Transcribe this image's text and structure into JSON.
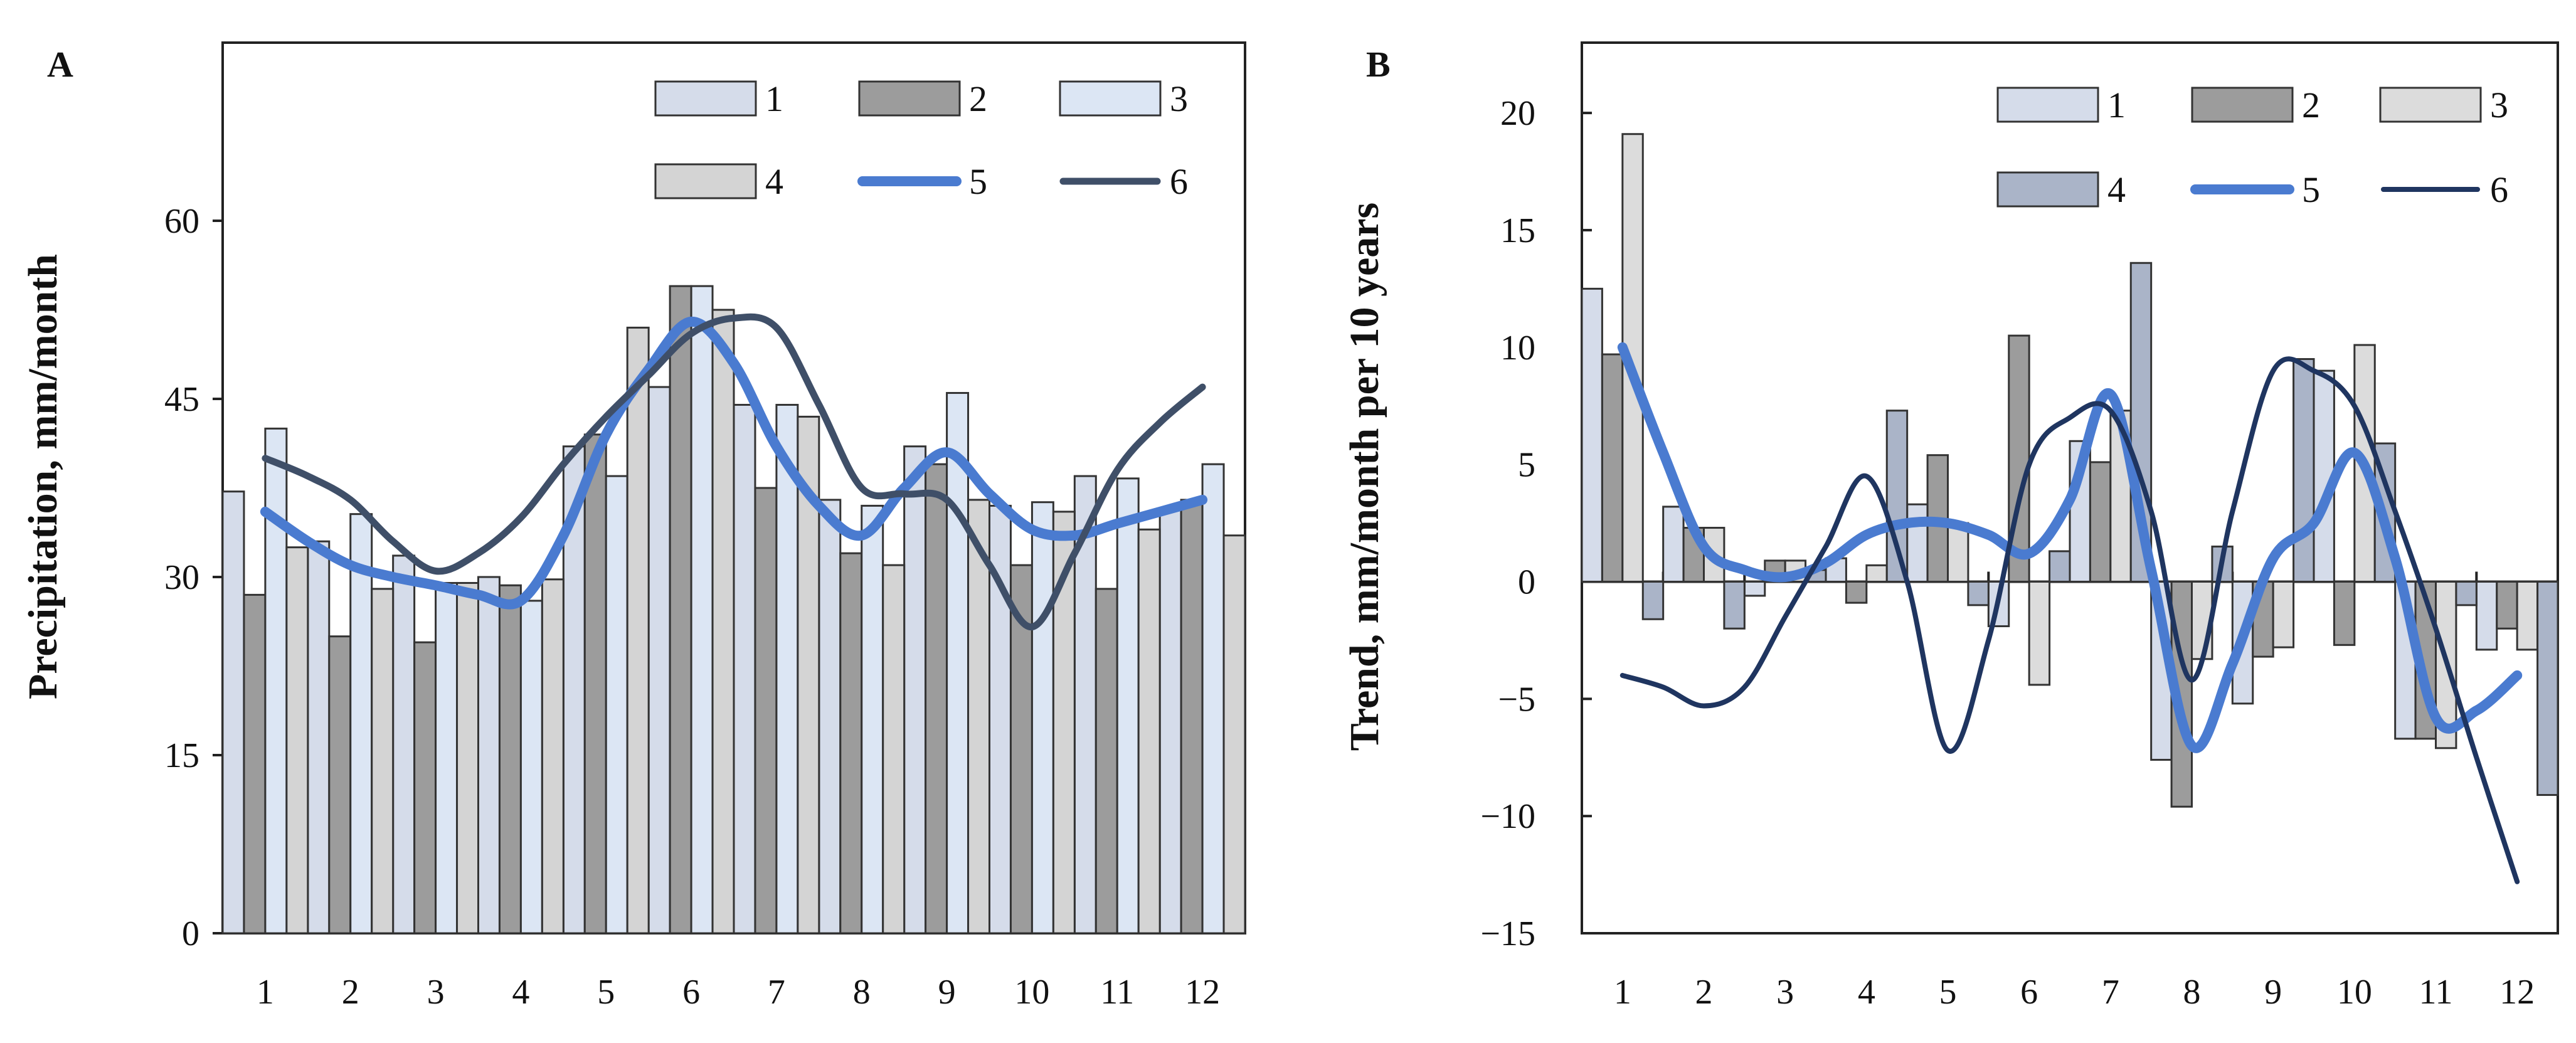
{
  "chart_data": [
    {
      "type": "bar",
      "panel_label": "A",
      "ylabel": "Precipitation, mm/month",
      "xlabel": "",
      "ylim": [
        0,
        75
      ],
      "yticks": [
        0,
        15,
        30,
        45,
        60
      ],
      "categories": [
        "1",
        "2",
        "3",
        "4",
        "5",
        "6",
        "7",
        "8",
        "9",
        "10",
        "11",
        "12"
      ],
      "legend_position": "top-right",
      "series": [
        {
          "name": "1",
          "kind": "bar",
          "color": "#d5dcea",
          "values": [
            37.2,
            33.0,
            31.8,
            30.0,
            41.0,
            46.0,
            44.5,
            36.5,
            41.0,
            36.0,
            38.5,
            35.8
          ]
        },
        {
          "name": "2",
          "kind": "bar",
          "color": "#9c9c9c",
          "values": [
            28.5,
            25.0,
            24.5,
            29.3,
            42.0,
            54.5,
            37.5,
            32.0,
            39.5,
            31.0,
            29.0,
            36.5
          ]
        },
        {
          "name": "3",
          "kind": "bar",
          "color": "#dce6f4",
          "values": [
            42.5,
            35.3,
            29.5,
            28.0,
            38.5,
            54.5,
            44.5,
            36.0,
            45.5,
            36.3,
            38.3,
            39.5
          ]
        },
        {
          "name": "4",
          "kind": "bar",
          "color": "#d4d4d4",
          "values": [
            32.5,
            29.0,
            29.5,
            29.8,
            51.0,
            52.5,
            43.5,
            31.0,
            36.5,
            35.5,
            34.0,
            33.5
          ]
        },
        {
          "name": "5",
          "kind": "line",
          "color": "#4a7bd0",
          "x": [
            1,
            1.5,
            2,
            2.5,
            3,
            3.5,
            4,
            4.5,
            5,
            5.5,
            6,
            6.5,
            7,
            7.5,
            8,
            8.5,
            9,
            9.5,
            10,
            10.5,
            11,
            11.5,
            12
          ],
          "values": [
            35.5,
            33.0,
            31.0,
            30.0,
            29.3,
            28.5,
            28.0,
            33.5,
            42.0,
            47.5,
            51.5,
            48.0,
            41.0,
            36.0,
            33.5,
            37.5,
            40.5,
            37.0,
            34.0,
            33.5,
            34.5,
            35.5,
            36.5
          ]
        },
        {
          "name": "6",
          "kind": "line",
          "color": "#3f4f68",
          "x": [
            1,
            1.5,
            2,
            2.5,
            3,
            3.5,
            4,
            4.5,
            5,
            5.5,
            6,
            6.5,
            7,
            7.5,
            8,
            8.5,
            9,
            9.5,
            10,
            10.5,
            11,
            11.5,
            12
          ],
          "values": [
            40.0,
            38.5,
            36.5,
            33.0,
            30.5,
            32.0,
            35.0,
            39.5,
            43.5,
            47.0,
            50.5,
            51.8,
            51.0,
            44.5,
            37.5,
            37.0,
            36.5,
            31.0,
            25.8,
            32.0,
            39.0,
            43.0,
            46.0
          ]
        }
      ]
    },
    {
      "type": "bar",
      "panel_label": "B",
      "ylabel": "Trend, mm/month per  10 years",
      "xlabel": "",
      "ylim": [
        -15,
        23
      ],
      "yticks": [
        -15,
        -10,
        -5,
        0,
        5,
        10,
        15,
        20
      ],
      "categories": [
        "1",
        "2",
        "3",
        "4",
        "5",
        "6",
        "7",
        "8",
        "9",
        "10",
        "11",
        "12"
      ],
      "legend_position": "top-right",
      "series": [
        {
          "name": "1",
          "kind": "bar",
          "color": "#d5dcea",
          "values": [
            12.5,
            3.2,
            -0.6,
            1.0,
            3.3,
            -1.9,
            6.0,
            -7.6,
            -5.2,
            9.0,
            -6.7,
            -2.9
          ]
        },
        {
          "name": "2",
          "kind": "bar",
          "color": "#9c9c9c",
          "values": [
            9.7,
            2.3,
            0.9,
            -0.9,
            5.4,
            10.5,
            5.1,
            -9.6,
            -3.2,
            -2.7,
            -6.7,
            -2.0
          ]
        },
        {
          "name": "3",
          "kind": "bar",
          "color": "#dcdcdc",
          "values": [
            19.1,
            2.3,
            0.9,
            0.7,
            2.5,
            -4.4,
            7.3,
            -3.3,
            -2.8,
            10.1,
            -7.1,
            -2.9
          ]
        },
        {
          "name": "4",
          "kind": "bar",
          "color": "#aab4c8",
          "values": [
            -1.6,
            -2.0,
            0.5,
            7.3,
            -1.0,
            1.3,
            13.6,
            1.5,
            9.5,
            5.9,
            -1.0,
            -9.1
          ]
        },
        {
          "name": "5",
          "kind": "line",
          "color": "#4a7bd0",
          "x": [
            1,
            1.5,
            2,
            2.5,
            3,
            3.5,
            4,
            4.5,
            5,
            5.5,
            6,
            6.5,
            7,
            7.5,
            8,
            8.5,
            9,
            9.5,
            10,
            10.5,
            11,
            11.5,
            12
          ],
          "values": [
            10.0,
            5.5,
            1.5,
            0.5,
            0.2,
            0.8,
            2.0,
            2.5,
            2.5,
            2.0,
            1.2,
            3.5,
            8.0,
            0.5,
            -7.0,
            -3.5,
            1.0,
            2.5,
            5.5,
            1.0,
            -5.8,
            -5.5,
            -4.0
          ]
        },
        {
          "name": "6",
          "kind": "line",
          "color": "#1f3560",
          "x": [
            1,
            1.5,
            2,
            2.5,
            3,
            3.5,
            4,
            4.5,
            5,
            5.5,
            6,
            6.5,
            7,
            7.5,
            8,
            8.5,
            9,
            9.5,
            10,
            10.5,
            11,
            11.5,
            12
          ],
          "values": [
            -4.0,
            -4.5,
            -5.3,
            -4.5,
            -1.5,
            1.5,
            4.5,
            0.0,
            -7.2,
            -2.5,
            5.0,
            7.0,
            7.3,
            3.0,
            -4.2,
            3.0,
            9.0,
            9.0,
            7.5,
            3.0,
            -2.0,
            -7.5,
            -12.8
          ]
        }
      ]
    }
  ]
}
